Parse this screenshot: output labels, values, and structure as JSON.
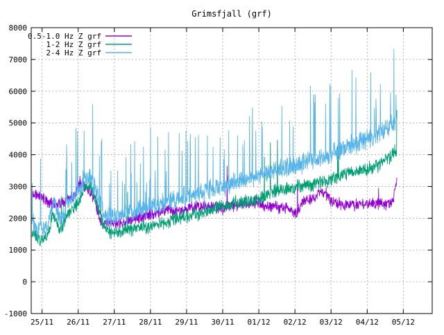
{
  "chart_data": {
    "type": "line",
    "title": "Grimsfjall (grf)",
    "xlabel": "",
    "ylabel": "",
    "ylim": [
      -1000,
      8000
    ],
    "y_ticks": [
      -1000,
      0,
      1000,
      2000,
      3000,
      4000,
      5000,
      6000,
      7000,
      8000
    ],
    "x_ticks": [
      "25/11",
      "26/11",
      "27/11",
      "28/11",
      "29/11",
      "30/11",
      "01/12",
      "02/12",
      "03/12",
      "04/12",
      "05/12"
    ],
    "x_range_days": [
      24.7,
      35.8
    ],
    "grid": true,
    "legend_position": "top-left",
    "series": [
      {
        "name": "0.5-1.0 Hz Z grf",
        "color": "#9400d3",
        "x": [
          24.72,
          25.0,
          25.2,
          25.35,
          25.5,
          25.7,
          25.9,
          26.05,
          26.25,
          26.45,
          26.6,
          26.75,
          27.0,
          27.3,
          27.6,
          27.9,
          28.2,
          28.5,
          28.8,
          29.1,
          29.4,
          29.7,
          30.0,
          30.3,
          30.6,
          30.9,
          31.2,
          31.5,
          31.8,
          31.9,
          32.05,
          32.2,
          32.35,
          32.55,
          32.7,
          32.85,
          33.0,
          33.3,
          33.6,
          33.9,
          34.2,
          34.5,
          34.7,
          34.82
        ],
        "y": [
          2800,
          2650,
          2500,
          2420,
          2480,
          2550,
          2700,
          3150,
          2900,
          2650,
          1900,
          1850,
          1820,
          1900,
          2000,
          2100,
          2150,
          2250,
          2200,
          2350,
          2400,
          2350,
          2300,
          2400,
          2450,
          2500,
          2400,
          2350,
          2300,
          2250,
          2150,
          2500,
          2600,
          2650,
          2900,
          2800,
          2550,
          2450,
          2400,
          2450,
          2450,
          2450,
          2500,
          3200
        ]
      },
      {
        "name": "1-2 Hz Z grf",
        "color": "#009e73",
        "x": [
          24.72,
          24.85,
          25.0,
          25.15,
          25.3,
          25.5,
          25.7,
          25.85,
          26.0,
          26.15,
          26.35,
          26.55,
          26.7,
          26.9,
          27.1,
          27.4,
          27.7,
          28.0,
          28.3,
          28.6,
          28.9,
          29.2,
          29.5,
          29.8,
          30.1,
          30.4,
          30.7,
          31.0,
          31.3,
          31.6,
          31.9,
          32.2,
          32.5,
          32.8,
          33.1,
          33.4,
          33.7,
          34.0,
          34.3,
          34.6,
          34.82
        ],
        "y": [
          1550,
          1400,
          1300,
          1450,
          2150,
          1600,
          2100,
          2300,
          2500,
          2950,
          3050,
          2400,
          1750,
          1550,
          1550,
          1650,
          1700,
          1750,
          1850,
          1950,
          2050,
          2100,
          2200,
          2300,
          2400,
          2500,
          2550,
          2650,
          2800,
          2900,
          2950,
          3000,
          3050,
          3150,
          3250,
          3400,
          3500,
          3550,
          3650,
          3900,
          4200
        ]
      },
      {
        "name": "2-4 Hz Z grf",
        "color": "#56b4e9",
        "x": [
          24.72,
          24.85,
          25.0,
          25.15,
          25.3,
          25.5,
          25.7,
          25.85,
          26.0,
          26.15,
          26.35,
          26.55,
          26.7,
          26.9,
          27.1,
          27.4,
          27.7,
          28.0,
          28.3,
          28.6,
          28.9,
          29.2,
          29.5,
          29.8,
          30.1,
          30.4,
          30.7,
          31.0,
          31.3,
          31.6,
          31.9,
          32.2,
          32.5,
          32.8,
          33.1,
          33.4,
          33.7,
          34.0,
          34.3,
          34.6,
          34.82
        ],
        "y": [
          1900,
          1700,
          1600,
          1700,
          2500,
          1950,
          2400,
          2600,
          2800,
          3200,
          3300,
          2700,
          2100,
          2000,
          2050,
          2150,
          2250,
          2350,
          2450,
          2550,
          2650,
          2750,
          2850,
          2950,
          3050,
          3150,
          3250,
          3350,
          3450,
          3550,
          3650,
          3750,
          3850,
          3950,
          4050,
          4200,
          4350,
          4500,
          4650,
          4850,
          5100
        ]
      }
    ]
  }
}
